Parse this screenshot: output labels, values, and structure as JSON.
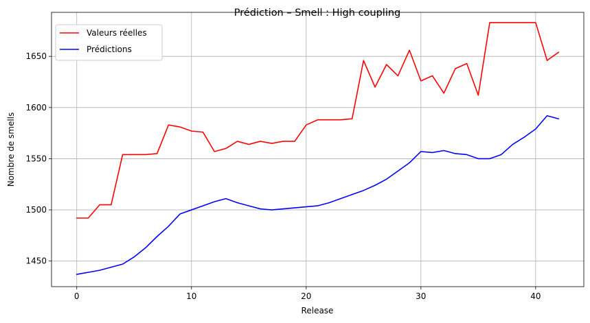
{
  "chart_data": {
    "type": "line",
    "title": "Prédiction – Smell : High coupling",
    "xlabel": "Release",
    "ylabel": "Nombre de smells",
    "xlim": [
      -2.2,
      44.2
    ],
    "ylim": [
      1425,
      1693
    ],
    "x_ticks": [
      0,
      10,
      20,
      30,
      40
    ],
    "y_ticks": [
      1450,
      1500,
      1550,
      1600,
      1650
    ],
    "grid": true,
    "legend_position": "upper-left",
    "x": [
      0,
      1,
      2,
      3,
      4,
      5,
      6,
      7,
      8,
      9,
      10,
      11,
      12,
      13,
      14,
      15,
      16,
      17,
      18,
      19,
      20,
      21,
      22,
      23,
      24,
      25,
      26,
      27,
      28,
      29,
      30,
      31,
      32,
      33,
      34,
      35,
      36,
      37,
      38,
      39,
      40,
      41,
      42
    ],
    "series": [
      {
        "name": "Valeurs réelles",
        "color": "#ff0000",
        "values": [
          1492,
          1492,
          1505,
          1505,
          1554,
          1554,
          1554,
          1555,
          1583,
          1581,
          1577,
          1576,
          1557,
          1560,
          1567,
          1564,
          1567,
          1565,
          1567,
          1567,
          1583,
          1588,
          1588,
          1588,
          1589,
          1646,
          1620,
          1642,
          1631,
          1656,
          1626,
          1631,
          1614,
          1638,
          1643,
          1612,
          1683,
          1683,
          1683,
          1683,
          1683,
          1646,
          1654
        ]
      },
      {
        "name": "Prédictions",
        "color": "#0000ff",
        "values": [
          1437,
          1439,
          1441,
          1444,
          1447,
          1454,
          1463,
          1474,
          1484,
          1496,
          1500,
          1504,
          1508,
          1511,
          1507,
          1504,
          1501,
          1500,
          1501,
          1502,
          1503,
          1504,
          1507,
          1511,
          1515,
          1519,
          1524,
          1530,
          1538,
          1546,
          1557,
          1556,
          1558,
          1555,
          1554,
          1550,
          1550,
          1554,
          1564,
          1571,
          1579,
          1592,
          1589
        ]
      }
    ]
  }
}
